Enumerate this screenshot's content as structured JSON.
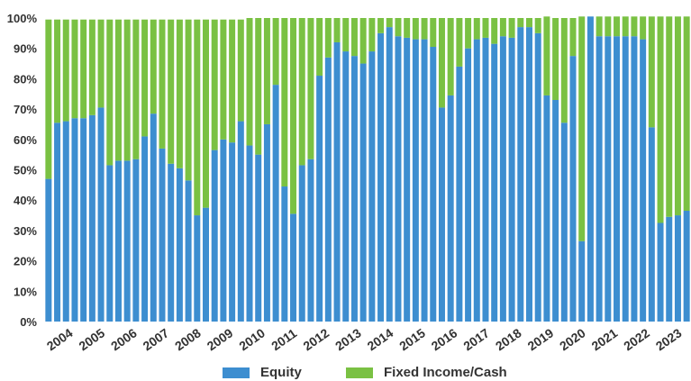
{
  "chart_data": {
    "type": "bar",
    "stacked": true,
    "ylim": [
      0,
      100
    ],
    "yticks": [
      "0%",
      "10%",
      "20%",
      "30%",
      "40%",
      "50%",
      "60%",
      "70%",
      "80%",
      "90%",
      "100%"
    ],
    "year_labels": [
      "2004",
      "2005",
      "2006",
      "2007",
      "2008",
      "2009",
      "2010",
      "2011",
      "2012",
      "2013",
      "2014",
      "2015",
      "2016",
      "2017",
      "2018",
      "2019",
      "2020",
      "2021",
      "2022",
      "2023"
    ],
    "colors": {
      "equity": "#3d8ed0",
      "fixed_income": "#7ac143"
    },
    "legend_position": "bottom",
    "series": [
      {
        "name": "Equity",
        "values": [
          47,
          65.5,
          66,
          67,
          67,
          68,
          70.5,
          51.5,
          53,
          53,
          53.5,
          61,
          68.5,
          57,
          52,
          50.5,
          46.5,
          35,
          37.5,
          56.5,
          60,
          59,
          66,
          58,
          55,
          65,
          78,
          44.5,
          35.5,
          51.5,
          53.5,
          81,
          87,
          92,
          89,
          87.5,
          85,
          89,
          95,
          97,
          94,
          93.5,
          93,
          93,
          90.5,
          70.5,
          74.5,
          84,
          90,
          93,
          93.5,
          91.5,
          94,
          93.5,
          97,
          97,
          95,
          74.5,
          73,
          65.5,
          87.5,
          26.5,
          100.5,
          94,
          94,
          94,
          94,
          94,
          93,
          64,
          32.5,
          34.5,
          35,
          36.5
        ]
      },
      {
        "name": "Fixed Income/Cash",
        "values": [
          52.5,
          34,
          33.5,
          32.5,
          32.5,
          31.5,
          29,
          48,
          46.5,
          46.5,
          46,
          38.5,
          31,
          42.5,
          47.5,
          49,
          53,
          64.5,
          62,
          43,
          39.5,
          40.5,
          33.5,
          42,
          45,
          35,
          22,
          55.5,
          64.5,
          48.5,
          46.5,
          19,
          13,
          8,
          11,
          12.5,
          15,
          11,
          5,
          3,
          6,
          6.5,
          7,
          7,
          9.5,
          29.5,
          25.5,
          16,
          10,
          7,
          6.5,
          8.5,
          6,
          6.5,
          3,
          3,
          5,
          26,
          27,
          34.5,
          12.5,
          74,
          0,
          6.5,
          6.5,
          6.5,
          6.5,
          6.5,
          7.5,
          36.5,
          68,
          66,
          65.5,
          64
        ]
      }
    ]
  }
}
